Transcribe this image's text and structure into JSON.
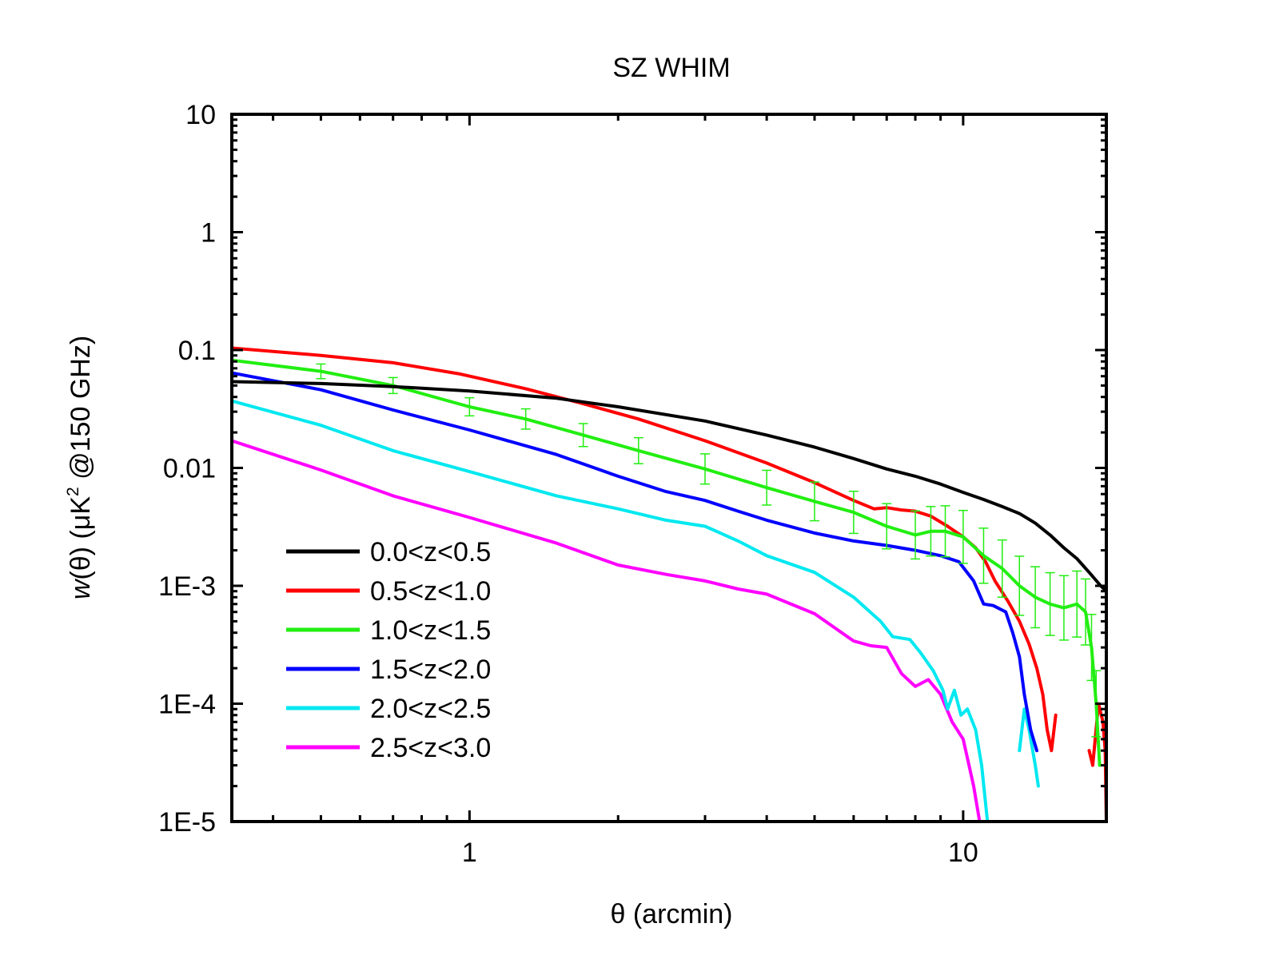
{
  "chart_data": {
    "type": "line",
    "title": "SZ WHIM",
    "xlabel": "θ (arcmin)",
    "ylabel_parts": [
      "w",
      "(θ)  (μK",
      "2",
      " @150 GHz)"
    ],
    "xscale": "log",
    "yscale": "log",
    "xlim": [
      0.33,
      19.5
    ],
    "ylim": [
      1e-05,
      10
    ],
    "x_ticks": [
      {
        "value": 1,
        "label": "1"
      },
      {
        "value": 10,
        "label": "10"
      }
    ],
    "y_ticks": [
      {
        "value": 10,
        "label": "10"
      },
      {
        "value": 1,
        "label": "1"
      },
      {
        "value": 0.1,
        "label": "0.1"
      },
      {
        "value": 0.01,
        "label": "0.01"
      },
      {
        "value": 0.001,
        "label": "1E-3"
      },
      {
        "value": 0.0001,
        "label": "1E-4"
      },
      {
        "value": 1e-05,
        "label": "1E-5"
      }
    ],
    "legend_position": "bottom-left",
    "series": [
      {
        "name": "0.0<z<0.5",
        "color": "#000000",
        "segments": [
          [
            [
              0.33,
              0.054
            ],
            [
              0.5,
              0.052
            ],
            [
              0.7,
              0.049
            ],
            [
              1.0,
              0.045
            ],
            [
              1.5,
              0.039
            ],
            [
              2.0,
              0.033
            ],
            [
              3.0,
              0.025
            ],
            [
              4.0,
              0.019
            ],
            [
              5.0,
              0.015
            ],
            [
              6.0,
              0.012
            ],
            [
              7.0,
              0.0098
            ],
            [
              8.0,
              0.0085
            ],
            [
              9.0,
              0.0073
            ],
            [
              10.0,
              0.0062
            ],
            [
              11.0,
              0.0054
            ],
            [
              12.0,
              0.0047
            ],
            [
              13.0,
              0.0041
            ],
            [
              14.0,
              0.0034
            ],
            [
              15.0,
              0.0027
            ],
            [
              16.0,
              0.0021
            ],
            [
              17.0,
              0.0017
            ],
            [
              18.0,
              0.0013
            ],
            [
              19.0,
              0.001
            ],
            [
              19.5,
              0.0009
            ]
          ]
        ]
      },
      {
        "name": "0.5<z<1.0",
        "color": "#ff0000",
        "segments": [
          [
            [
              0.33,
              0.104
            ],
            [
              0.5,
              0.09
            ],
            [
              0.7,
              0.078
            ],
            [
              0.95,
              0.063
            ],
            [
              1.3,
              0.047
            ],
            [
              1.7,
              0.035
            ],
            [
              2.2,
              0.026
            ],
            [
              3.0,
              0.017
            ],
            [
              4.0,
              0.011
            ],
            [
              5.0,
              0.0075
            ],
            [
              6.0,
              0.0053
            ],
            [
              6.6,
              0.0045
            ],
            [
              7.0,
              0.0046
            ],
            [
              7.5,
              0.0044
            ],
            [
              8.0,
              0.0043
            ],
            [
              8.6,
              0.0039
            ],
            [
              9.3,
              0.0032
            ],
            [
              10.0,
              0.0026
            ],
            [
              10.6,
              0.0021
            ],
            [
              11.1,
              0.0016
            ],
            [
              11.6,
              0.0011
            ],
            [
              12.3,
              0.00075
            ],
            [
              13.0,
              0.0005
            ],
            [
              13.6,
              0.00032
            ],
            [
              14.1,
              0.0002
            ],
            [
              14.5,
              0.00012
            ],
            [
              14.8,
              6e-05
            ],
            [
              15.1,
              4e-05
            ],
            [
              15.4,
              8e-05
            ]
          ],
          [
            [
              18.0,
              4e-05
            ],
            [
              18.3,
              3e-05
            ],
            [
              18.8,
              0.0001
            ],
            [
              19.2,
              7e-05
            ],
            [
              19.4,
              4e-05
            ],
            [
              19.5,
              1e-05
            ]
          ]
        ]
      },
      {
        "name": "1.0<z<1.5",
        "color": "#22ee11",
        "errorbars": true,
        "segments": [
          [
            [
              0.33,
              0.082
            ],
            [
              0.5,
              0.066
            ],
            [
              0.7,
              0.05
            ],
            [
              1.0,
              0.033
            ],
            [
              1.3,
              0.026
            ],
            [
              1.7,
              0.019
            ],
            [
              2.2,
              0.014
            ],
            [
              3.0,
              0.0098
            ],
            [
              4.0,
              0.0068
            ],
            [
              5.0,
              0.0052
            ],
            [
              6.0,
              0.0042
            ],
            [
              7.0,
              0.0032
            ],
            [
              8.0,
              0.0027
            ],
            [
              8.6,
              0.0029
            ],
            [
              9.2,
              0.0029
            ],
            [
              10.0,
              0.0026
            ],
            [
              11.0,
              0.0018
            ],
            [
              12.0,
              0.0014
            ],
            [
              13.0,
              0.001
            ],
            [
              14.0,
              0.0008
            ],
            [
              15.0,
              0.0007
            ],
            [
              16.0,
              0.00065
            ],
            [
              17.0,
              0.0007
            ],
            [
              17.7,
              0.0006
            ],
            [
              18.2,
              0.0003
            ],
            [
              18.6,
              0.0001
            ],
            [
              18.9,
              3e-05
            ]
          ]
        ]
      },
      {
        "name": "1.5<z<2.0",
        "color": "#0000ff",
        "segments": [
          [
            [
              0.33,
              0.064
            ],
            [
              0.5,
              0.046
            ],
            [
              0.7,
              0.031
            ],
            [
              1.0,
              0.021
            ],
            [
              1.5,
              0.013
            ],
            [
              2.0,
              0.0085
            ],
            [
              2.5,
              0.0063
            ],
            [
              3.0,
              0.0053
            ],
            [
              3.5,
              0.0043
            ],
            [
              4.0,
              0.0036
            ],
            [
              5.0,
              0.0028
            ],
            [
              6.0,
              0.0024
            ],
            [
              7.0,
              0.0022
            ],
            [
              8.0,
              0.002
            ],
            [
              9.0,
              0.0018
            ],
            [
              9.8,
              0.0016
            ],
            [
              10.5,
              0.0011
            ],
            [
              11.0,
              0.0007
            ],
            [
              11.5,
              0.00068
            ],
            [
              12.2,
              0.0006
            ],
            [
              12.6,
              0.0004
            ],
            [
              13.0,
              0.00025
            ],
            [
              13.3,
              0.00012
            ],
            [
              13.7,
              6e-05
            ],
            [
              14.1,
              4e-05
            ]
          ]
        ]
      },
      {
        "name": "2.0<z<2.5",
        "color": "#00e8f0",
        "segments": [
          [
            [
              0.33,
              0.037
            ],
            [
              0.5,
              0.023
            ],
            [
              0.7,
              0.014
            ],
            [
              1.0,
              0.0093
            ],
            [
              1.5,
              0.0058
            ],
            [
              2.0,
              0.0045
            ],
            [
              2.5,
              0.0036
            ],
            [
              3.0,
              0.0032
            ],
            [
              3.5,
              0.0024
            ],
            [
              4.0,
              0.0018
            ],
            [
              5.0,
              0.0013
            ],
            [
              6.0,
              0.0008
            ],
            [
              6.8,
              0.0005
            ],
            [
              7.2,
              0.00037
            ],
            [
              7.8,
              0.00035
            ],
            [
              8.2,
              0.00027
            ],
            [
              8.7,
              0.00019
            ],
            [
              9.1,
              0.00013
            ],
            [
              9.3,
              9e-05
            ],
            [
              9.6,
              0.00013
            ],
            [
              9.9,
              8e-05
            ],
            [
              10.2,
              9e-05
            ],
            [
              10.6,
              6e-05
            ],
            [
              10.9,
              3e-05
            ],
            [
              11.2,
              1e-05
            ]
          ],
          [
            [
              13.0,
              4e-05
            ],
            [
              13.3,
              9e-05
            ],
            [
              13.6,
              6e-05
            ],
            [
              14.0,
              3e-05
            ],
            [
              14.2,
              2e-05
            ]
          ]
        ]
      },
      {
        "name": "2.5<z<3.0",
        "color": "#ff00ff",
        "segments": [
          [
            [
              0.33,
              0.017
            ],
            [
              0.5,
              0.0096
            ],
            [
              0.7,
              0.0058
            ],
            [
              1.0,
              0.0038
            ],
            [
              1.5,
              0.0023
            ],
            [
              2.0,
              0.0015
            ],
            [
              2.5,
              0.00125
            ],
            [
              3.0,
              0.0011
            ],
            [
              3.5,
              0.00094
            ],
            [
              4.0,
              0.00085
            ],
            [
              5.0,
              0.00058
            ],
            [
              6.0,
              0.00034
            ],
            [
              6.5,
              0.00031
            ],
            [
              7.0,
              0.0003
            ],
            [
              7.5,
              0.00018
            ],
            [
              8.0,
              0.00014
            ],
            [
              8.5,
              0.00016
            ],
            [
              9.0,
              0.00012
            ],
            [
              9.5,
              7e-05
            ],
            [
              10.0,
              5e-05
            ],
            [
              10.5,
              2e-05
            ],
            [
              10.8,
              1e-05
            ]
          ]
        ]
      }
    ]
  }
}
